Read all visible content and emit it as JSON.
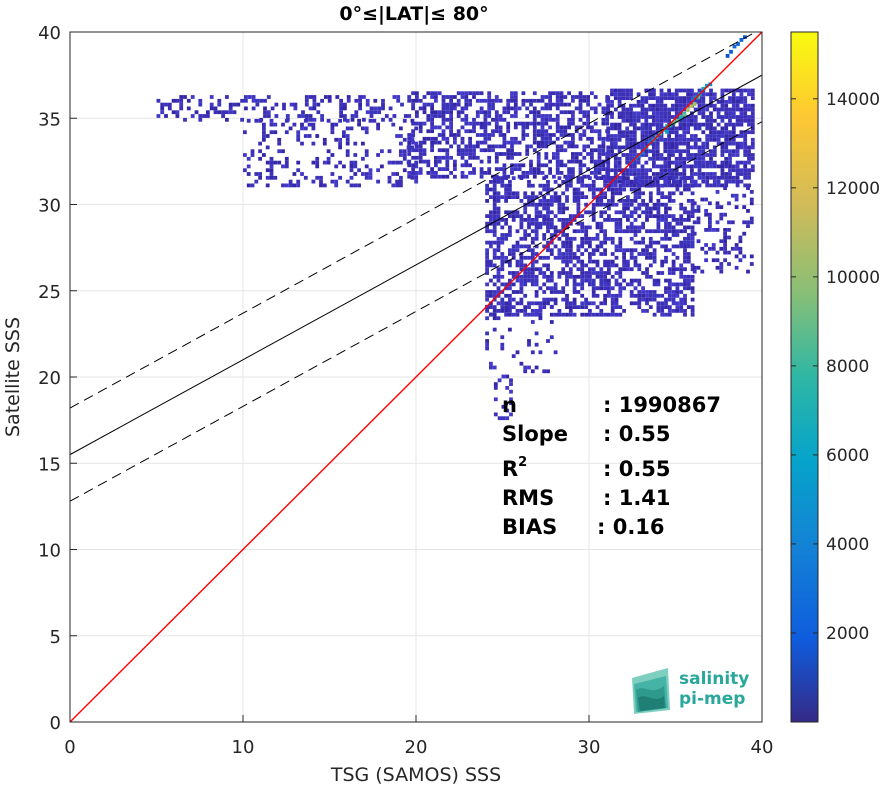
{
  "chart_data": {
    "type": "heatmap",
    "title": "0°≤|LAT|≤ 80°",
    "xlabel": "TSG (SAMOS) SSS",
    "ylabel": "Satellite SSS",
    "xlim": [
      0,
      40
    ],
    "ylim": [
      0,
      40
    ],
    "x_ticks": [
      "0",
      "10",
      "20",
      "30",
      "40"
    ],
    "y_ticks": [
      "0",
      "5",
      "10",
      "15",
      "20",
      "25",
      "30",
      "35",
      "40"
    ],
    "grid": true,
    "colorbar": {
      "range": [
        0,
        15500
      ],
      "ticks": [
        "2000",
        "4000",
        "6000",
        "8000",
        "10000",
        "12000",
        "14000"
      ],
      "colormap": "parula"
    },
    "lines": {
      "identity": {
        "intercept": 0,
        "slope": 1,
        "color": "#ff0000"
      },
      "regression": {
        "intercept": 15.5,
        "slope": 0.55,
        "color": "#000000"
      },
      "upper_bound": {
        "intercept": 18.2,
        "slope": 0.55,
        "dash": true
      },
      "lower_bound": {
        "intercept": 12.8,
        "slope": 0.55,
        "dash": true
      }
    },
    "density_regions": [
      {
        "x0": 5.0,
        "x1": 19.5,
        "y0": 34.8,
        "y1": 36.2,
        "density": 0.35
      },
      {
        "x0": 10.0,
        "x1": 20.0,
        "y0": 31.0,
        "y1": 34.8,
        "density": 0.25
      },
      {
        "x0": 19.5,
        "x1": 31.0,
        "y0": 31.5,
        "y1": 36.5,
        "density": 0.55
      },
      {
        "x0": 31.0,
        "x1": 39.5,
        "y0": 31.0,
        "y1": 36.5,
        "density": 0.75
      },
      {
        "x0": 24.0,
        "x1": 36.0,
        "y0": 23.5,
        "y1": 31.5,
        "density": 0.55
      },
      {
        "x0": 24.0,
        "x1": 28.0,
        "y0": 20.0,
        "y1": 24.0,
        "density": 0.12
      },
      {
        "x0": 24.5,
        "x1": 25.5,
        "y0": 17.5,
        "y1": 20.0,
        "density": 0.3
      },
      {
        "x0": 36.0,
        "x1": 39.5,
        "y0": 26.0,
        "y1": 31.0,
        "density": 0.25
      }
    ],
    "hotspots": [
      {
        "x": 34.0,
        "y": 34.0,
        "value": 7500
      },
      {
        "x": 35.0,
        "y": 34.8,
        "value": 9000
      },
      {
        "x": 35.8,
        "y": 35.6,
        "value": 11000
      },
      {
        "x": 36.5,
        "y": 36.5,
        "value": 6000
      },
      {
        "x": 38.5,
        "y": 39.2,
        "value": 2500
      },
      {
        "x": 33.0,
        "y": 33.0,
        "value": 4000
      }
    ],
    "stats": {
      "labels": [
        "n",
        "Slope",
        "R",
        "RMS",
        "BIAS"
      ],
      "r_superscript": "2",
      "values": [
        ": 1990867",
        ": 0.55",
        ": 0.55",
        ": 1.41",
        ": 0.16"
      ]
    }
  },
  "logo": {
    "line1": "salinity",
    "line2": "pi-mep"
  },
  "colors": {
    "identity_line": "#ff0000",
    "regression_line": "#000000",
    "grid": "#e6e6e6",
    "axis": "#262626",
    "low_density": "#3a2fb5"
  }
}
